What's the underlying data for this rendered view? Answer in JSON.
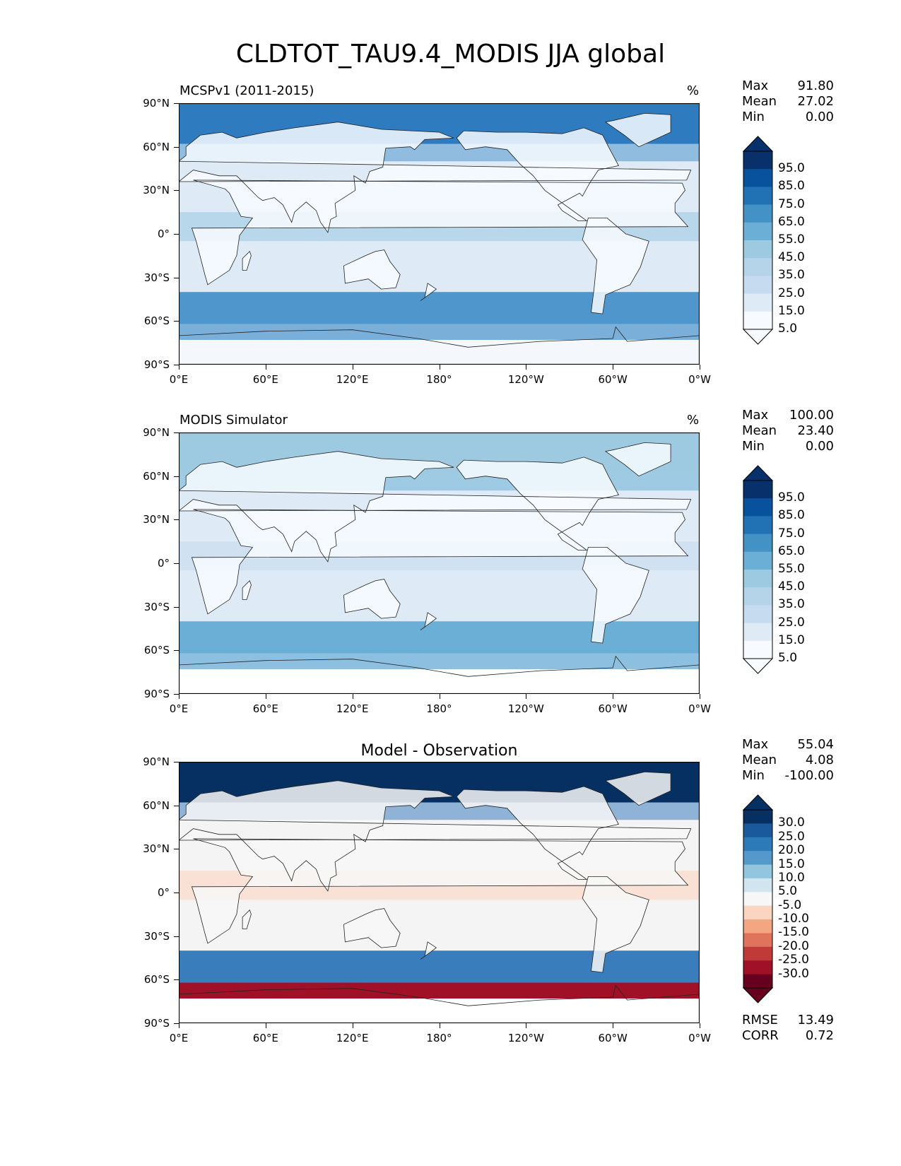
{
  "title": "CLDTOT_TAU9.4_MODIS JJA global",
  "axes": {
    "y_ticks": [
      "90°N",
      "60°N",
      "30°N",
      "0°",
      "30°S",
      "60°S",
      "90°S"
    ],
    "x_ticks": [
      "0°E",
      "60°E",
      "120°E",
      "180°",
      "120°W",
      "60°W",
      "0°W"
    ]
  },
  "panels": [
    {
      "title_left": "MCSPv1 (2011-2015)",
      "title_right": "%",
      "title_center": "",
      "stats": [
        {
          "label": "Max",
          "value": "91.80"
        },
        {
          "label": "Mean",
          "value": "27.02"
        },
        {
          "label": "Min",
          "value": "0.00"
        }
      ],
      "colorbar": {
        "labels": [
          "95.0",
          "85.0",
          "75.0",
          "65.0",
          "55.0",
          "45.0",
          "35.0",
          "25.0",
          "15.0",
          "5.0"
        ],
        "colors": [
          "#08306b",
          "#08519c",
          "#2171b5",
          "#4292c6",
          "#6baed6",
          "#9ecae1",
          "#b5d4e9",
          "#c6dbef",
          "#deebf7",
          "#f7fbff"
        ]
      },
      "field_colors": {
        "land": "#f7fbff",
        "ocean": "#deebf7",
        "arctic": "#2f7bbf",
        "storm": "#4f96cc",
        "tropic": "#9ecae1",
        "south": "#f4f8fd"
      },
      "antarctic_masked": false
    },
    {
      "title_left": "MODIS Simulator",
      "title_right": "%",
      "title_center": "",
      "stats": [
        {
          "label": "Max",
          "value": "100.00"
        },
        {
          "label": "Mean",
          "value": "23.40"
        },
        {
          "label": "Min",
          "value": "0.00"
        }
      ],
      "colorbar": {
        "labels": [
          "95.0",
          "85.0",
          "75.0",
          "65.0",
          "55.0",
          "45.0",
          "35.0",
          "25.0",
          "15.0",
          "5.0"
        ],
        "colors": [
          "#08306b",
          "#08519c",
          "#2171b5",
          "#4292c6",
          "#6baed6",
          "#9ecae1",
          "#b5d4e9",
          "#c6dbef",
          "#deebf7",
          "#f7fbff"
        ]
      },
      "field_colors": {
        "land": "#f7fbff",
        "ocean": "#deebf7",
        "arctic": "#9ecae1",
        "storm": "#6baed6",
        "tropic": "#c6dbef",
        "south": "#ffffff"
      },
      "antarctic_masked": true
    },
    {
      "title_left": "",
      "title_right": "",
      "title_center": "Model - Observation",
      "stats": [
        {
          "label": "Max",
          "value": "55.04"
        },
        {
          "label": "Mean",
          "value": "4.08"
        },
        {
          "label": "Min",
          "value": "-100.00"
        }
      ],
      "extra_stats": [
        {
          "label": "RMSE",
          "value": "13.49"
        },
        {
          "label": "CORR",
          "value": "0.72"
        }
      ],
      "colorbar": {
        "labels": [
          "30.0",
          "25.0",
          "20.0",
          "15.0",
          "10.0",
          "5.0",
          "-5.0",
          "-10.0",
          "-15.0",
          "-20.0",
          "-25.0",
          "-30.0"
        ],
        "colors": [
          "#053061",
          "#1a5a9c",
          "#2c7ab8",
          "#5599cc",
          "#92c5de",
          "#d1e5f0",
          "#f7f7f7",
          "#fbd5c0",
          "#f4a582",
          "#e0735c",
          "#c03a3a",
          "#a01127",
          "#67001f"
        ]
      },
      "field_colors": {
        "land": "#f7f7f7",
        "ocean": "#f4f4f4",
        "arctic": "#053061",
        "storm": "#3a7dbd",
        "tropic": "#fbd5c0",
        "south": "#a01127"
      },
      "antarctic_masked": true
    }
  ]
}
